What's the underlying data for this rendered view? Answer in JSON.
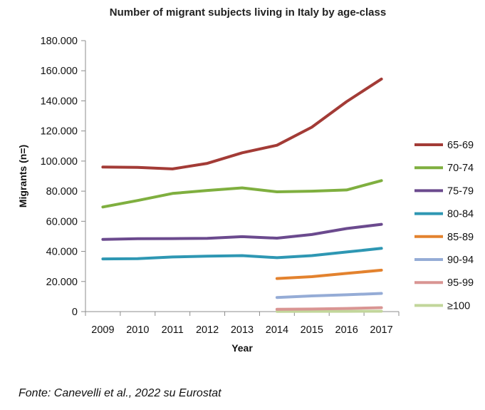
{
  "chart_data": {
    "type": "line",
    "title": "Number of migrant subjects living in Italy by age-class",
    "xlabel": "Year",
    "ylabel": "Migrants (n=)",
    "ylim": [
      0,
      180000
    ],
    "yticks": [
      "0",
      "20.000",
      "40.000",
      "60.000",
      "80.000",
      "100.000",
      "120.000",
      "140.000",
      "160.000",
      "180.000"
    ],
    "x": [
      "2009",
      "2010",
      "2011",
      "2012",
      "2013",
      "2014",
      "2015",
      "2016",
      "2017"
    ],
    "grid": false,
    "legend_position": "right",
    "series": [
      {
        "name": "65-69",
        "color": "#a33b36",
        "values": [
          96000,
          95800,
          94800,
          98500,
          105500,
          110500,
          122500,
          139500,
          154500
        ]
      },
      {
        "name": "70-74",
        "color": "#7faf3f",
        "values": [
          69500,
          73800,
          78500,
          80500,
          82200,
          79600,
          80000,
          80800,
          87000
        ]
      },
      {
        "name": "75-79",
        "color": "#6b4a8e",
        "values": [
          48000,
          48400,
          48500,
          48700,
          49800,
          48800,
          51200,
          55200,
          58000
        ]
      },
      {
        "name": "80-84",
        "color": "#2e97b3",
        "values": [
          35000,
          35200,
          36300,
          36800,
          37200,
          35800,
          37200,
          39600,
          42000
        ]
      },
      {
        "name": "85-89",
        "color": "#e3822e",
        "values": [
          null,
          null,
          null,
          null,
          null,
          22000,
          23200,
          25400,
          27500
        ]
      },
      {
        "name": "90-94",
        "color": "#95acd6",
        "values": [
          null,
          null,
          null,
          null,
          null,
          9400,
          10400,
          11200,
          12100
        ]
      },
      {
        "name": "95-99",
        "color": "#d99593",
        "values": [
          null,
          null,
          null,
          null,
          null,
          1500,
          1700,
          2100,
          2600
        ]
      },
      {
        "name": "≥100",
        "color": "#c2d69b",
        "values": [
          null,
          null,
          null,
          null,
          null,
          150,
          180,
          200,
          230
        ]
      }
    ]
  },
  "source": "Fonte: Canevelli et al., 2022 su Eurostat"
}
